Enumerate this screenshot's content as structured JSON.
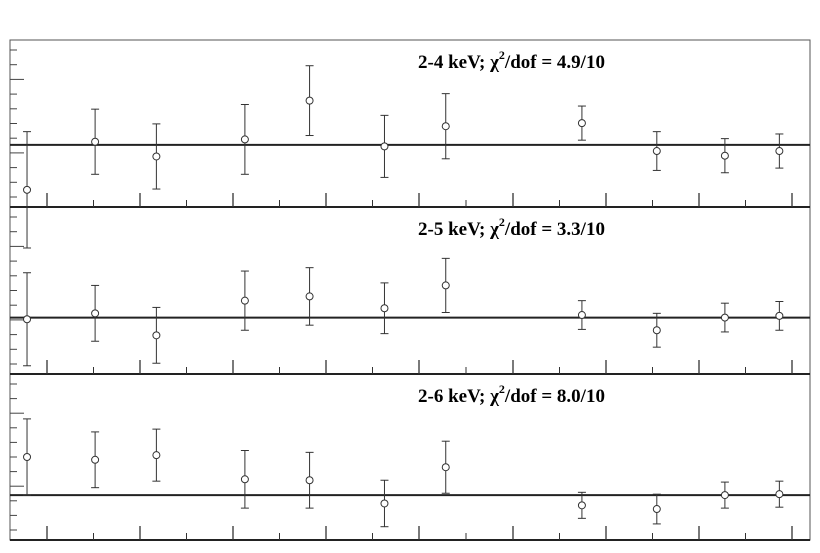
{
  "chart_data": [
    {
      "type": "scatter",
      "title": "2-4 keV; χ²/dof = 4.9/10",
      "label_prefix": "2-4 keV; χ",
      "label_sup": "2",
      "label_suffix": "/dof = 4.9/10",
      "x": [
        0.5,
        2.5,
        4.3,
        6.9,
        8.8,
        11.0,
        12.8,
        16.8,
        19.0,
        21.0,
        22.6
      ],
      "y": [
        -0.58,
        0.04,
        -0.15,
        0.07,
        0.57,
        -0.02,
        0.24,
        0.28,
        -0.08,
        -0.14,
        -0.08
      ],
      "yerr": [
        0.75,
        0.42,
        0.42,
        0.45,
        0.45,
        0.4,
        0.42,
        0.22,
        0.25,
        0.22,
        0.22
      ],
      "reference_line": 0,
      "xlim": [
        0,
        23.5
      ],
      "ylim": [
        -0.75,
        1.3
      ],
      "grid": false
    },
    {
      "type": "scatter",
      "title": "2-5 keV; χ²/dof = 3.3/10",
      "label_prefix": "2-5 keV; χ",
      "label_sup": "2",
      "label_suffix": "/dof = 3.3/10",
      "x": [
        0.5,
        2.5,
        4.3,
        6.9,
        8.8,
        11.0,
        12.8,
        16.8,
        19.0,
        21.0,
        22.6
      ],
      "y": [
        -0.02,
        0.05,
        -0.21,
        0.2,
        0.25,
        0.11,
        0.38,
        0.03,
        -0.15,
        0.0,
        0.02
      ],
      "yerr": [
        0.55,
        0.33,
        0.33,
        0.35,
        0.34,
        0.3,
        0.32,
        0.17,
        0.2,
        0.17,
        0.17
      ],
      "reference_line": 0,
      "xlim": [
        0,
        23.5
      ],
      "ylim": [
        -0.62,
        1.26
      ],
      "grid": false
    },
    {
      "type": "scatter",
      "title": "2-6 keV; χ²/dof = 8.0/10",
      "label_prefix": "2-6 keV; χ",
      "label_sup": "2",
      "label_suffix": "/dof = 8.0/10",
      "x": [
        0.5,
        2.5,
        4.3,
        6.9,
        8.8,
        11.0,
        12.8,
        16.8,
        19.0,
        21.0,
        22.6
      ],
      "y": [
        0.41,
        0.38,
        0.43,
        0.17,
        0.16,
        -0.09,
        0.3,
        -0.11,
        -0.15,
        0.0,
        0.01
      ],
      "yerr": [
        0.41,
        0.3,
        0.28,
        0.31,
        0.3,
        0.25,
        0.28,
        0.14,
        0.16,
        0.14,
        0.14
      ],
      "reference_line": 0,
      "xlim": [
        0,
        23.5
      ],
      "ylim": [
        -0.44,
        1.26
      ],
      "grid": false
    }
  ]
}
